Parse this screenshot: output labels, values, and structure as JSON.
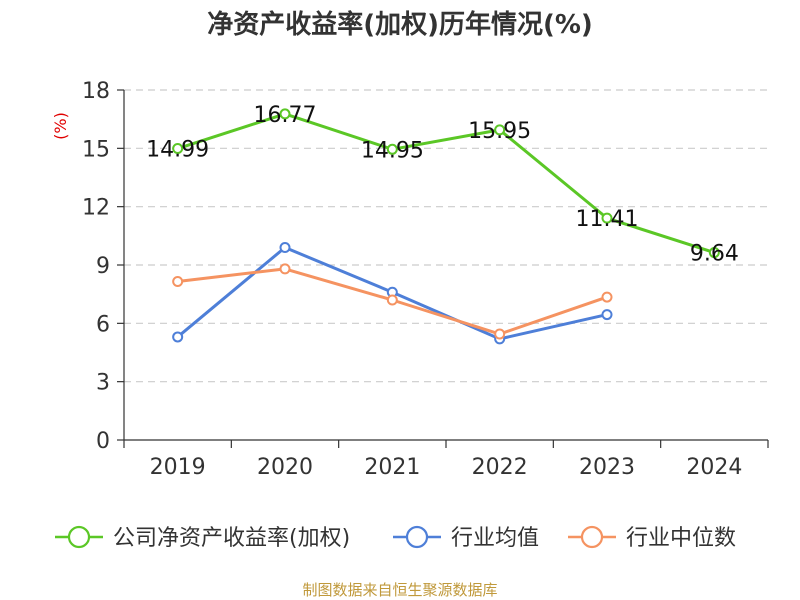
{
  "chart_data": {
    "type": "line",
    "title": "净资产收益率(加权)历年情况(%)",
    "ylabel": "(%)",
    "xlabel": "",
    "categories": [
      "2019",
      "2020",
      "2021",
      "2022",
      "2023",
      "2024"
    ],
    "ylim": [
      0,
      18
    ],
    "yticks": [
      0,
      3,
      6,
      9,
      12,
      15,
      18
    ],
    "grid": true,
    "legend_position": "bottom",
    "series": [
      {
        "name": "公司净资产收益率(加权)",
        "color": "#5bc726",
        "values": [
          14.99,
          16.77,
          14.95,
          15.95,
          11.41,
          9.64
        ],
        "labels": [
          "14.99",
          "16.77",
          "14.95",
          "15.95",
          "11.41",
          "9.64"
        ]
      },
      {
        "name": "行业均值",
        "color": "#4e7fd8",
        "values": [
          5.3,
          9.9,
          7.6,
          5.2,
          6.45,
          null
        ]
      },
      {
        "name": "行业中位数",
        "color": "#f59361",
        "values": [
          8.15,
          8.8,
          7.2,
          5.45,
          7.35,
          null
        ]
      }
    ],
    "source": "制图数据来自恒生聚源数据库"
  }
}
